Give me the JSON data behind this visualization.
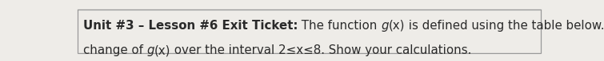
{
  "bold_part": "Unit #3 – Lesson #6 Exit Ticket:",
  "line1_after": " The function ",
  "gx": "g",
  "paren_x": "(x)",
  "line1_end": " is defined using the table below. Find the average rate of",
  "line2_start": "change of ",
  "line2_end": " over the interval 2≤x≤8. Show your calculations.",
  "background_color": "#eeece8",
  "text_color": "#2a2a2a",
  "border_color": "#999999",
  "font_size": 10.8,
  "fig_width": 7.55,
  "fig_height": 0.77,
  "dpi": 100
}
